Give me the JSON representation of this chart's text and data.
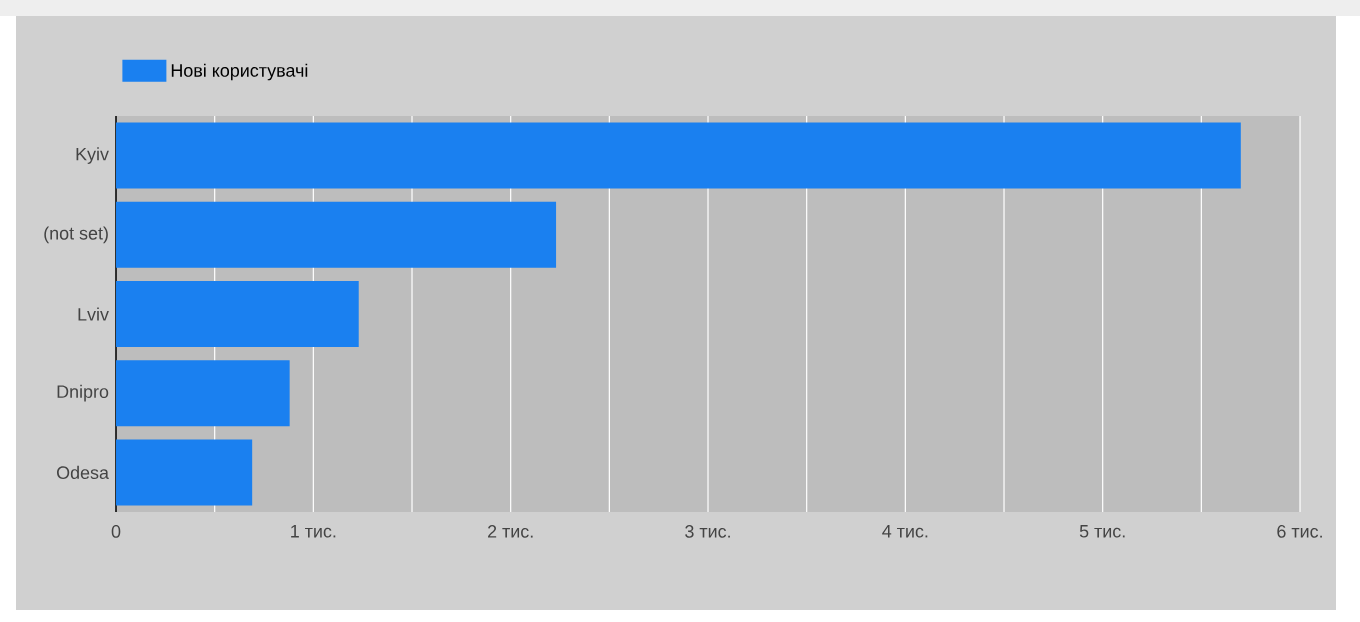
{
  "chart_data": {
    "type": "bar",
    "orientation": "horizontal",
    "categories": [
      "Kyiv",
      "(not set)",
      "Lviv",
      "Dnipro",
      "Odesa"
    ],
    "series": [
      {
        "name": "Нові користувачі",
        "color": "#1a80f0",
        "values": [
          5.7,
          2.23,
          1.23,
          0.88,
          0.69
        ]
      }
    ],
    "xlim": [
      0,
      6
    ],
    "xticks": [
      0,
      {
        "value": 0.5,
        "label": null
      },
      {
        "value": 1,
        "label": "1 тис."
      },
      {
        "value": 1.5,
        "label": null
      },
      {
        "value": 2,
        "label": "2 тис."
      },
      {
        "value": 2.5,
        "label": null
      },
      {
        "value": 3,
        "label": "3 тис."
      },
      {
        "value": 3.5,
        "label": null
      },
      {
        "value": 4,
        "label": "4 тис."
      },
      {
        "value": 4.5,
        "label": null
      },
      {
        "value": 5,
        "label": "5 тис."
      },
      {
        "value": 5.5,
        "label": null
      },
      {
        "value": 6,
        "label": "6 тис."
      }
    ],
    "grid": "x",
    "legend": "top left"
  }
}
